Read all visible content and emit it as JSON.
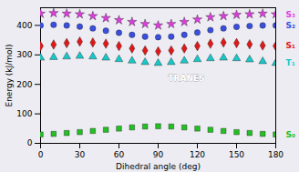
{
  "chart_data": {
    "type": "scatter",
    "x_label": "Dihedral angle (deg)",
    "y_label": "Energy (kJ/mol)",
    "x": [
      0,
      10,
      20,
      30,
      40,
      50,
      60,
      70,
      80,
      90,
      100,
      110,
      120,
      130,
      140,
      150,
      160,
      170,
      180
    ],
    "series": [
      {
        "name": "S₃",
        "color": "#e03ce0",
        "marker": "star",
        "values": [
          440,
          442,
          440,
          438,
          432,
          425,
          418,
          412,
          405,
          400,
          405,
          412,
          420,
          428,
          432,
          436,
          438,
          440,
          438
        ]
      },
      {
        "name": "S₂",
        "color": "#3a4fe0",
        "marker": "circle",
        "values": [
          400,
          402,
          400,
          396,
          390,
          382,
          375,
          368,
          362,
          360,
          362,
          368,
          376,
          384,
          390,
          395,
          398,
          400,
          400
        ]
      },
      {
        "name": "S₁",
        "color": "#e01818",
        "marker": "diamond",
        "values": [
          330,
          335,
          340,
          345,
          342,
          338,
          330,
          322,
          315,
          312,
          315,
          322,
          330,
          338,
          342,
          340,
          336,
          332,
          330
        ]
      },
      {
        "name": "T₁",
        "color": "#18c8c8",
        "marker": "triangle",
        "values": [
          290,
          292,
          294,
          296,
          294,
          290,
          285,
          280,
          275,
          272,
          275,
          280,
          285,
          288,
          290,
          288,
          284,
          278,
          272
        ]
      },
      {
        "name": "S₀",
        "color": "#22c022",
        "marker": "square",
        "values": [
          30,
          32,
          35,
          38,
          42,
          46,
          50,
          54,
          57,
          58,
          57,
          54,
          50,
          46,
          42,
          38,
          35,
          32,
          30
        ]
      }
    ],
    "annotations": [
      "TRANES"
    ],
    "xlim": [
      0,
      180
    ],
    "xticks": [
      0,
      30,
      60,
      90,
      120,
      150,
      180
    ],
    "ylim": [
      0,
      460
    ],
    "yticks": [
      0,
      100,
      200,
      300,
      400
    ],
    "grid": false
  }
}
